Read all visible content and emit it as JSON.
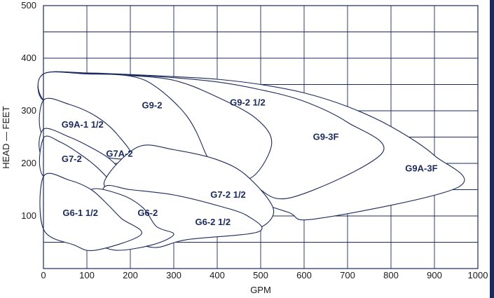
{
  "chart_data": {
    "type": "area",
    "xlabel": "GPM",
    "ylabel": "HEAD — FEET",
    "xlim": [
      0,
      1000
    ],
    "ylim": [
      0,
      500
    ],
    "x_ticks": [
      "0",
      "100",
      "200",
      "300",
      "400",
      "500",
      "600",
      "700",
      "800",
      "900",
      "1000"
    ],
    "y_ticks": [
      "100",
      "200",
      "300",
      "400",
      "500"
    ],
    "grid": true,
    "regions": [
      {
        "label": "G9A-3F",
        "boundary": [
          [
            0,
            370
          ],
          [
            100,
            372
          ],
          [
            200,
            369
          ],
          [
            300,
            365
          ],
          [
            400,
            360
          ],
          [
            500,
            350
          ],
          [
            600,
            334
          ],
          [
            700,
            308
          ],
          [
            800,
            270
          ],
          [
            900,
            215
          ],
          [
            955,
            155
          ],
          [
            630,
            95
          ],
          [
            560,
            108
          ],
          [
            420,
            150
          ],
          [
            300,
            210
          ],
          [
            250,
            225
          ],
          [
            200,
            260
          ],
          [
            150,
            288
          ],
          [
            100,
            305
          ],
          [
            0,
            320
          ]
        ]
      },
      {
        "label": "G9-3F",
        "boundary": [
          [
            0,
            370
          ],
          [
            100,
            371
          ],
          [
            200,
            368
          ],
          [
            300,
            363
          ],
          [
            400,
            355
          ],
          [
            500,
            340
          ],
          [
            600,
            318
          ],
          [
            700,
            278
          ],
          [
            780,
            220
          ],
          [
            570,
            135
          ],
          [
            480,
            160
          ],
          [
            380,
            205
          ],
          [
            250,
            250
          ],
          [
            100,
            315
          ],
          [
            0,
            320
          ]
        ]
      },
      {
        "label": "G9-2 1/2",
        "boundary": [
          [
            0,
            370
          ],
          [
            100,
            370
          ],
          [
            200,
            367
          ],
          [
            300,
            358
          ],
          [
            390,
            330
          ],
          [
            490,
            285
          ],
          [
            525,
            235
          ],
          [
            470,
            170
          ],
          [
            380,
            205
          ],
          [
            250,
            250
          ],
          [
            100,
            315
          ],
          [
            0,
            320
          ]
        ]
      },
      {
        "label": "G9-2",
        "boundary": [
          [
            0,
            370
          ],
          [
            100,
            370
          ],
          [
            200,
            366
          ],
          [
            260,
            345
          ],
          [
            330,
            290
          ],
          [
            370,
            225
          ],
          [
            380,
            185
          ],
          [
            260,
            200
          ],
          [
            160,
            230
          ],
          [
            100,
            260
          ],
          [
            0,
            320
          ]
        ]
      },
      {
        "label": "G9A-1 1/2",
        "boundary": [
          [
            0,
            320
          ],
          [
            60,
            312
          ],
          [
            120,
            290
          ],
          [
            170,
            255
          ],
          [
            200,
            210
          ],
          [
            90,
            220
          ],
          [
            0,
            250
          ]
        ]
      },
      {
        "label": "G7A-2",
        "boundary": [
          [
            0,
            265
          ],
          [
            60,
            250
          ],
          [
            110,
            230
          ],
          [
            150,
            210
          ],
          [
            180,
            185
          ],
          [
            210,
            150
          ],
          [
            180,
            140
          ],
          [
            150,
            150
          ],
          [
            100,
            180
          ],
          [
            0,
            210
          ]
        ]
      },
      {
        "label": "G7-2",
        "boundary": [
          [
            0,
            248
          ],
          [
            40,
            240
          ],
          [
            80,
            220
          ],
          [
            120,
            195
          ],
          [
            150,
            170
          ],
          [
            170,
            150
          ],
          [
            155,
            140
          ],
          [
            100,
            150
          ],
          [
            0,
            175
          ]
        ]
      },
      {
        "label": "G7-2 1/2",
        "boundary": [
          [
            150,
            180
          ],
          [
            220,
            232
          ],
          [
            300,
            226
          ],
          [
            400,
            207
          ],
          [
            470,
            175
          ],
          [
            530,
            110
          ],
          [
            480,
            75
          ],
          [
            380,
            110
          ],
          [
            250,
            140
          ],
          [
            150,
            150
          ]
        ]
      },
      {
        "label": "G6-2 1/2",
        "boundary": [
          [
            140,
            155
          ],
          [
            200,
            150
          ],
          [
            300,
            140
          ],
          [
            400,
            120
          ],
          [
            470,
            100
          ],
          [
            495,
            70
          ],
          [
            330,
            55
          ],
          [
            255,
            40
          ],
          [
            190,
            60
          ],
          [
            140,
            100
          ]
        ]
      },
      {
        "label": "G6-2",
        "boundary": [
          [
            110,
            150
          ],
          [
            180,
            140
          ],
          [
            230,
            115
          ],
          [
            260,
            80
          ],
          [
            300,
            65
          ],
          [
            250,
            45
          ],
          [
            165,
            35
          ],
          [
            120,
            55
          ],
          [
            110,
            100
          ]
        ]
      },
      {
        "label": "G6-1 1/2",
        "boundary": [
          [
            0,
            175
          ],
          [
            60,
            168
          ],
          [
            110,
            150
          ],
          [
            150,
            120
          ],
          [
            180,
            95
          ],
          [
            225,
            65
          ],
          [
            120,
            35
          ],
          [
            70,
            45
          ],
          [
            0,
            75
          ]
        ]
      }
    ],
    "labels": [
      {
        "text": "G9A-1 1/2",
        "x": 90,
        "y": 268
      },
      {
        "text": "G9-2",
        "x": 250,
        "y": 305
      },
      {
        "text": "G9-2 1/2",
        "x": 470,
        "y": 310
      },
      {
        "text": "G9-3F",
        "x": 650,
        "y": 245
      },
      {
        "text": "G9A-3F",
        "x": 870,
        "y": 185
      },
      {
        "text": "G7A-2",
        "x": 175,
        "y": 213
      },
      {
        "text": "G7-2",
        "x": 65,
        "y": 203
      },
      {
        "text": "G7-2 1/2",
        "x": 425,
        "y": 135
      },
      {
        "text": "G6-2",
        "x": 240,
        "y": 100
      },
      {
        "text": "G6-2 1/2",
        "x": 390,
        "y": 83
      },
      {
        "text": "G6-1 1/2",
        "x": 85,
        "y": 100
      }
    ]
  },
  "colors": {
    "navy": "#1b2a5c",
    "edge_bar": "#1b2a5c"
  }
}
